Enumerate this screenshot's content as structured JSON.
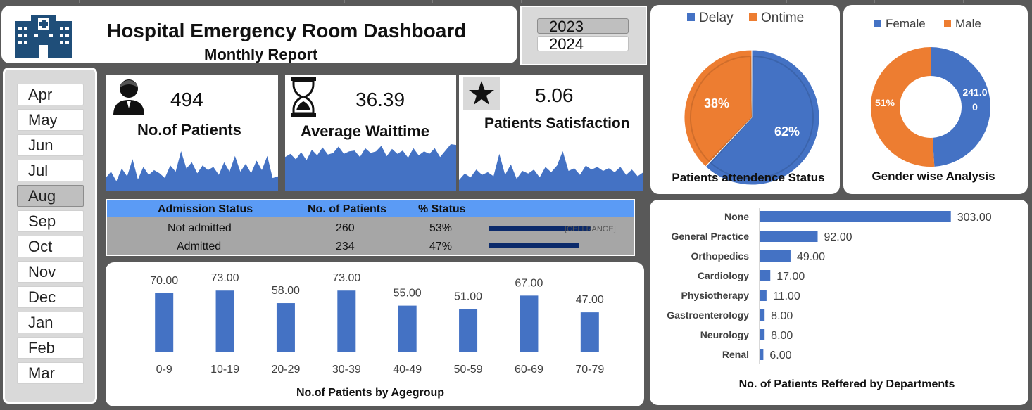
{
  "header": {
    "title": "Hospital Emergency Room Dashboard",
    "subtitle": "Monthly Report"
  },
  "years": [
    {
      "label": "2023",
      "selected": true
    },
    {
      "label": "2024",
      "selected": false
    }
  ],
  "months": [
    {
      "label": "Apr",
      "selected": false
    },
    {
      "label": "May",
      "selected": false
    },
    {
      "label": "Jun",
      "selected": false
    },
    {
      "label": "Jul",
      "selected": false
    },
    {
      "label": "Aug",
      "selected": true
    },
    {
      "label": "Sep",
      "selected": false
    },
    {
      "label": "Oct",
      "selected": false
    },
    {
      "label": "Nov",
      "selected": false
    },
    {
      "label": "Dec",
      "selected": false
    },
    {
      "label": "Jan",
      "selected": false
    },
    {
      "label": "Feb",
      "selected": false
    },
    {
      "label": "Mar",
      "selected": false
    }
  ],
  "kpis": {
    "patients": {
      "value": "494",
      "label": "No.of Patients",
      "icon": "user-icon"
    },
    "waittime": {
      "value": "36.39",
      "label": "Average Waittime",
      "icon": "hourglass-icon"
    },
    "satisfaction": {
      "value": "5.06",
      "label": "Patients Satisfaction",
      "icon": "star-icon"
    }
  },
  "admission": {
    "headers": [
      "Admission Status",
      "No. of Patients",
      "% Status"
    ],
    "rows": [
      {
        "status": "Not admitted",
        "patients": "260",
        "percent": "53%",
        "bar_fraction": 0.53
      },
      {
        "status": "Admitted",
        "patients": "234",
        "percent": "47%",
        "bar_fraction": 0.47
      }
    ],
    "placeholder": "[CELLRANGE]"
  },
  "colors": {
    "blue": "#4472c4",
    "orange": "#ed7d31",
    "navy": "#0b2a6b",
    "header_blue": "#5b9bf5"
  },
  "chart_data": [
    {
      "type": "area",
      "id": "patients-sparkline",
      "values": [
        8,
        12,
        6,
        14,
        9,
        20,
        7,
        15,
        10,
        13,
        11,
        8,
        16,
        12,
        25,
        14,
        18,
        11,
        16,
        13,
        15,
        10,
        18,
        12,
        22,
        12,
        17,
        11,
        19,
        13,
        22,
        8,
        9
      ]
    },
    {
      "type": "area",
      "id": "waittime-sparkline",
      "values": [
        42,
        46,
        39,
        48,
        38,
        51,
        44,
        54,
        45,
        47,
        55,
        46,
        49,
        50,
        42,
        53,
        47,
        49,
        56,
        43,
        52,
        46,
        50,
        41,
        53,
        44,
        49,
        46,
        53,
        42,
        50,
        58,
        57
      ]
    },
    {
      "type": "area",
      "id": "satisfaction-sparkline",
      "values": [
        8,
        13,
        10,
        16,
        12,
        14,
        11,
        28,
        12,
        20,
        9,
        15,
        13,
        16,
        10,
        18,
        14,
        19,
        30,
        15,
        17,
        12,
        19,
        16,
        18,
        15,
        17,
        14,
        18,
        12,
        16,
        11,
        14
      ]
    },
    {
      "type": "bar",
      "title": "No.of Patients by Agegroup",
      "categories": [
        "0-9",
        "10-19",
        "20-29",
        "30-39",
        "40-49",
        "50-59",
        "60-69",
        "70-79"
      ],
      "values": [
        70,
        73,
        58,
        73,
        55,
        51,
        67,
        47
      ],
      "data_labels": [
        "70.00",
        "73.00",
        "58.00",
        "73.00",
        "55.00",
        "51.00",
        "67.00",
        "47.00"
      ],
      "ylim": [
        0,
        90
      ]
    },
    {
      "type": "bar",
      "orientation": "horizontal",
      "title": "No. of Patients Reffered by Departments",
      "categories": [
        "None",
        "General Practice",
        "Orthopedics",
        "Cardiology",
        "Physiotherapy",
        "Gastroenterology",
        "Neurology",
        "Renal"
      ],
      "values": [
        303,
        92,
        49,
        17,
        11,
        8,
        8,
        6
      ],
      "data_labels": [
        "303.00",
        "92.00",
        "49.00",
        "17.00",
        "11.00",
        "8.00",
        "8.00",
        "6.00"
      ],
      "xlim": [
        0,
        310
      ]
    },
    {
      "type": "pie",
      "title": "Patients attendence Status",
      "legend_position": "top",
      "series": [
        {
          "name": "Delay",
          "value": 62,
          "label": "62%",
          "color": "#4472c4"
        },
        {
          "name": "Ontime",
          "value": 38,
          "label": "38%",
          "color": "#ed7d31"
        }
      ]
    },
    {
      "type": "pie",
      "subtype": "donut",
      "title": "Gender wise Analysis",
      "legend_position": "top",
      "series": [
        {
          "name": "Female",
          "value": 49,
          "label": "241.0",
          "label_line2": "0",
          "color": "#4472c4"
        },
        {
          "name": "Male",
          "value": 51,
          "label": "51%",
          "color": "#ed7d31"
        }
      ]
    }
  ]
}
